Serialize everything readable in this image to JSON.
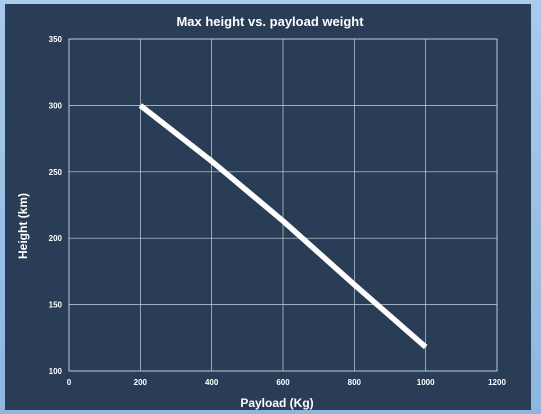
{
  "chart_data": {
    "type": "line",
    "title": "Max height vs. payload weight",
    "xlabel": "Payload (Kg)",
    "ylabel": "Height (km)",
    "xlim": [
      0,
      1200
    ],
    "ylim": [
      100,
      350
    ],
    "x_ticks": [
      "0",
      "200",
      "400",
      "600",
      "800",
      "1000",
      "1200"
    ],
    "y_ticks": [
      "100",
      "150",
      "200",
      "250",
      "300",
      "350"
    ],
    "grid": true,
    "legend": "none",
    "series": [
      {
        "x": [
          200,
          400,
          600,
          800,
          1000
        ],
        "y": [
          300,
          258,
          213,
          165,
          118
        ],
        "color": "#ffffff"
      }
    ]
  },
  "colors": {
    "background": "#2a3d57",
    "grid": "#c9d3df",
    "line": "#ffffff"
  }
}
